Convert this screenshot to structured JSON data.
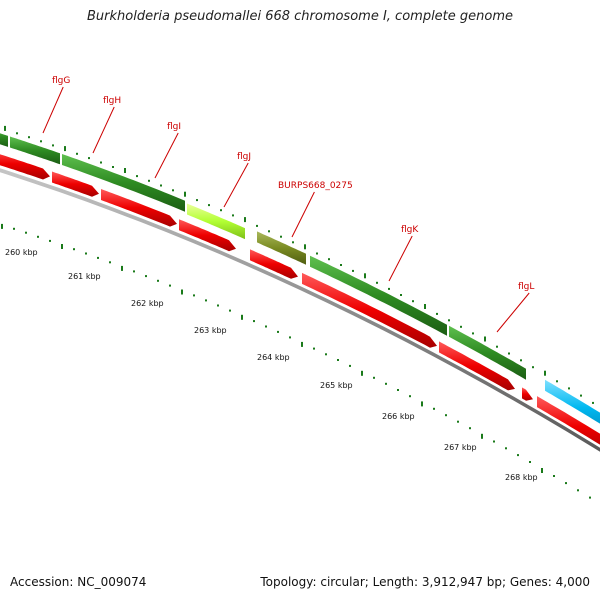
{
  "title": "Burkholderia pseudomallei 668 chromosome I, complete genome",
  "footer": {
    "accession": "Accession: NC_009074",
    "summary": "Topology: circular; Length: 3,912,947 bp; Genes: 4,000"
  },
  "colors": {
    "label": "#cc0000",
    "forward_gene": "#2e8b22",
    "reverse_gene": "#ee0000",
    "highlight_gene": "#b2ff33",
    "olive_gene": "#7a8b22",
    "cyan_gene": "#00b8f0",
    "backbone": "#8c8c8c",
    "tick": "#1a7a1a"
  },
  "scale_labels": [
    {
      "kbp": 260,
      "text": "260 kbp"
    },
    {
      "kbp": 261,
      "text": "261 kbp"
    },
    {
      "kbp": 262,
      "text": "262 kbp"
    },
    {
      "kbp": 263,
      "text": "263 kbp"
    },
    {
      "kbp": 264,
      "text": "264 kbp"
    },
    {
      "kbp": 265,
      "text": "265 kbp"
    },
    {
      "kbp": 266,
      "text": "266 kbp"
    },
    {
      "kbp": 267,
      "text": "267 kbp"
    },
    {
      "kbp": 268,
      "text": "268 kbp"
    }
  ],
  "genes": [
    {
      "label": "flgG",
      "strand": "forward",
      "color": "forward_gene"
    },
    {
      "label": "flgH",
      "strand": "forward",
      "color": "forward_gene"
    },
    {
      "label": "flgI",
      "strand": "forward",
      "color": "forward_gene"
    },
    {
      "label": "flgJ",
      "strand": "forward",
      "color": "highlight_gene"
    },
    {
      "label": "BURPS668_0275",
      "strand": "forward",
      "color": "olive_gene"
    },
    {
      "label": "flgK",
      "strand": "forward",
      "color": "forward_gene"
    },
    {
      "label": "flgL",
      "strand": "forward",
      "color": "forward_gene"
    }
  ]
}
